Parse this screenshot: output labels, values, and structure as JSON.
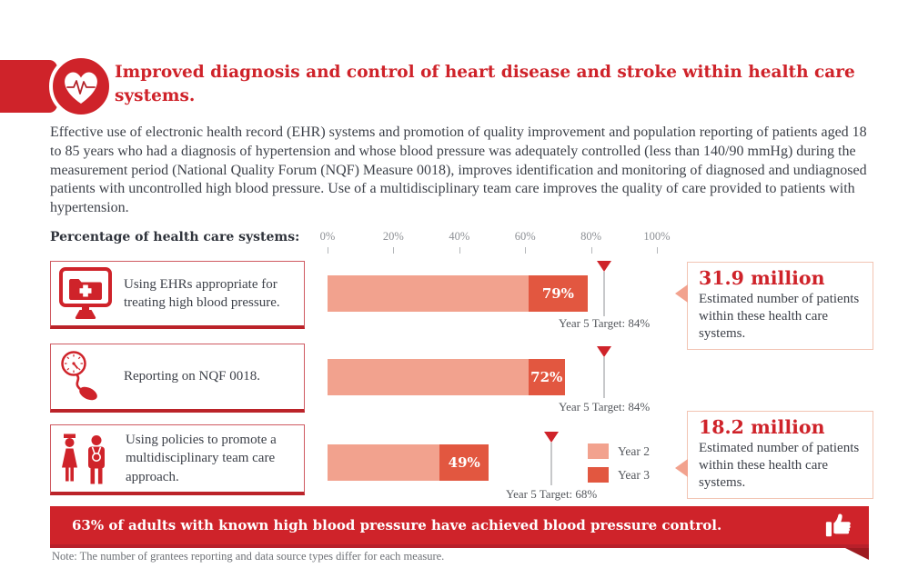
{
  "colors": {
    "primary_red": "#cf232a",
    "dark_red": "#a81d23",
    "year2_salmon": "#f2a28e",
    "year3_orange": "#e25740",
    "callout_border": "#f2c4b3",
    "text_dark": "#3d4149",
    "axis_gray": "#8d9095",
    "target_gray": "#55585d",
    "note_gray": "#6d7075"
  },
  "header": {
    "title": "Improved diagnosis and control of heart disease and stroke within health care systems.",
    "icon": "heart-ekg-icon"
  },
  "intro": "Effective use of electronic health record (EHR) systems and promotion of quality improvement and population reporting of patients aged 18 to 85 years who had a diagnosis of hypertension and whose blood pressure was adequately controlled (less than 140/90 mmHg) during the measurement period (National Quality Forum (NQF) Measure 0018), improves identification and monitoring of diagnosed and undiagnosed patients with uncontrolled high blood pressure. Use of a multidisciplinary team care improves the quality of care provided to patients with hypertension.",
  "chart_data": {
    "type": "bar",
    "axis_label": "Percentage of health care systems:",
    "x_ticks": [
      "0%",
      "20%",
      "40%",
      "60%",
      "80%",
      "100%"
    ],
    "xlim": [
      0,
      100
    ],
    "legend": [
      {
        "label": "Year 2",
        "color": "#f2a28e"
      },
      {
        "label": "Year 3",
        "color": "#e25740"
      }
    ],
    "rows": [
      {
        "label": "Using EHRs appropriate for treating high blood pressure.",
        "icon": "ehr-monitor-icon",
        "year2": 61,
        "year3": 79,
        "value_label": "79%",
        "target": 84,
        "target_label": "Year 5 Target: 84%"
      },
      {
        "label": "Reporting on NQF 0018.",
        "icon": "bp-gauge-icon",
        "year2": 61,
        "year3": 72,
        "value_label": "72%",
        "target": 84,
        "target_label": "Year 5 Target: 84%"
      },
      {
        "label": "Using policies to promote a multidisciplinary team care approach.",
        "icon": "care-team-icon",
        "year2": 34,
        "year3": 49,
        "value_label": "49%",
        "target": 68,
        "target_label": "Year 5 Target: 68%"
      }
    ]
  },
  "callouts": [
    {
      "value": "31.9 million",
      "description": "Estimated number of patients within these health care systems."
    },
    {
      "value": "18.2 million",
      "description": "Estimated number of patients within these health care systems."
    }
  ],
  "banner": {
    "highlight": "63%",
    "text": " of adults with known high blood pressure have achieved blood pressure control.",
    "icon": "thumbs-up-icon"
  },
  "note": "Note: The number of grantees reporting and data source types differ for each measure."
}
